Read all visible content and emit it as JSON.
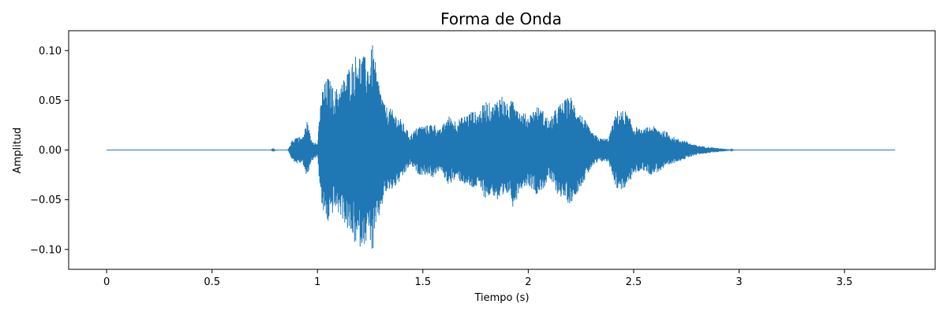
{
  "chart_data": {
    "type": "line",
    "title": "Forma de Onda",
    "xlabel": "Tiempo (s)",
    "ylabel": "Amplitud",
    "xlim": [
      -0.18,
      3.93
    ],
    "ylim": [
      -0.12,
      0.12
    ],
    "x_ticks": [
      0,
      0.5,
      1,
      1.5,
      2,
      2.5,
      3,
      3.5
    ],
    "x_tick_labels": [
      "0",
      "0.5",
      "1",
      "1.5",
      "2",
      "2.5",
      "3",
      "3.5"
    ],
    "y_ticks": [
      -0.1,
      -0.05,
      0.0,
      0.05,
      0.1
    ],
    "y_tick_labels": [
      "−0.10",
      "−0.05",
      "0.00",
      "0.05",
      "0.10"
    ],
    "grid": false,
    "legend": "none",
    "color": "#1f77b4",
    "duration": 3.74,
    "series": [
      {
        "values_description_free": true,
        "envelope": [
          [
            0.0,
            0.0
          ],
          [
            0.78,
            0.0
          ],
          [
            0.79,
            0.002
          ],
          [
            0.8,
            0.0
          ],
          [
            0.86,
            0.0
          ],
          [
            0.88,
            0.01
          ],
          [
            0.9,
            0.014
          ],
          [
            0.93,
            0.013
          ],
          [
            0.95,
            0.03
          ],
          [
            0.97,
            0.012
          ],
          [
            1.0,
            0.006
          ],
          [
            1.02,
            0.06
          ],
          [
            1.05,
            0.075
          ],
          [
            1.08,
            0.06
          ],
          [
            1.12,
            0.07
          ],
          [
            1.15,
            0.085
          ],
          [
            1.19,
            0.1
          ],
          [
            1.22,
            0.095
          ],
          [
            1.25,
            0.09
          ],
          [
            1.26,
            0.11
          ],
          [
            1.28,
            0.08
          ],
          [
            1.32,
            0.045
          ],
          [
            1.36,
            0.04
          ],
          [
            1.4,
            0.03
          ],
          [
            1.44,
            0.015
          ],
          [
            1.48,
            0.025
          ],
          [
            1.52,
            0.025
          ],
          [
            1.55,
            0.028
          ],
          [
            1.58,
            0.02
          ],
          [
            1.62,
            0.035
          ],
          [
            1.66,
            0.03
          ],
          [
            1.7,
            0.035
          ],
          [
            1.73,
            0.04
          ],
          [
            1.76,
            0.038
          ],
          [
            1.8,
            0.05
          ],
          [
            1.83,
            0.045
          ],
          [
            1.87,
            0.058
          ],
          [
            1.91,
            0.043
          ],
          [
            1.93,
            0.06
          ],
          [
            1.96,
            0.04
          ],
          [
            2.0,
            0.035
          ],
          [
            2.04,
            0.045
          ],
          [
            2.07,
            0.04
          ],
          [
            2.1,
            0.03
          ],
          [
            2.14,
            0.045
          ],
          [
            2.17,
            0.05
          ],
          [
            2.2,
            0.055
          ],
          [
            2.24,
            0.04
          ],
          [
            2.27,
            0.03
          ],
          [
            2.3,
            0.018
          ],
          [
            2.34,
            0.012
          ],
          [
            2.38,
            0.012
          ],
          [
            2.42,
            0.04
          ],
          [
            2.46,
            0.04
          ],
          [
            2.5,
            0.025
          ],
          [
            2.54,
            0.02
          ],
          [
            2.58,
            0.025
          ],
          [
            2.62,
            0.022
          ],
          [
            2.66,
            0.018
          ],
          [
            2.7,
            0.012
          ],
          [
            2.74,
            0.01
          ],
          [
            2.78,
            0.006
          ],
          [
            2.82,
            0.004
          ],
          [
            2.86,
            0.003
          ],
          [
            2.9,
            0.002
          ],
          [
            2.94,
            0.001
          ],
          [
            2.98,
            0.0
          ],
          [
            3.74,
            0.0
          ]
        ]
      }
    ]
  }
}
